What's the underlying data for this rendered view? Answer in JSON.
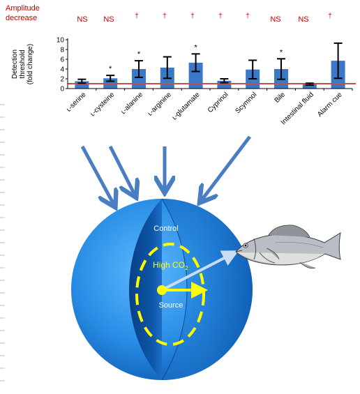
{
  "legend": {
    "amplitude_line1": "Amplitude",
    "amplitude_line2": "decrease"
  },
  "significance": [
    "NS",
    "NS",
    "†",
    "†",
    "†",
    "†",
    "†",
    "NS",
    "NS",
    "†"
  ],
  "colors": {
    "bar": "#3a78c8",
    "reference_line": "#c0504d",
    "significance_text": "#c00000",
    "sphere_light": "#3ea3f2",
    "sphere_dark": "#0a4f9e",
    "arrow": "#4a7ec2",
    "dashed_ellipse": "#ffff00",
    "vector": "#ffff00",
    "fish_vector": "#c9ddf2"
  },
  "chart_data": {
    "type": "bar",
    "ylabel_lines": [
      "Detection",
      "threshold",
      "(fold change)"
    ],
    "xlabel": "",
    "ylim": [
      0,
      10
    ],
    "yticks": [
      0,
      2,
      4,
      6,
      8,
      10
    ],
    "reference_value": 1,
    "categories": [
      "ʟ-serine",
      "ʟ-cysteine",
      "ʟ-alanine",
      "ʟ-arginine",
      "ʟ-glutamate",
      "Cyprinol",
      "Scymnol",
      "Bile",
      "Intestinal fluid",
      "Alarm cue"
    ],
    "values": [
      1.5,
      2.1,
      4.0,
      4.3,
      5.3,
      1.6,
      3.9,
      4.0,
      0.9,
      5.7
    ],
    "error": [
      0.4,
      0.6,
      1.7,
      2.2,
      1.8,
      0.4,
      1.9,
      2.1,
      0.2,
      3.6
    ],
    "stars": [
      "",
      "*",
      "*",
      "",
      "*",
      "",
      "",
      "*",
      "",
      ""
    ]
  },
  "diagram": {
    "control_label": "Control",
    "high_co2_main": "High CO",
    "high_co2_sub": "2",
    "source_label": "Source"
  }
}
